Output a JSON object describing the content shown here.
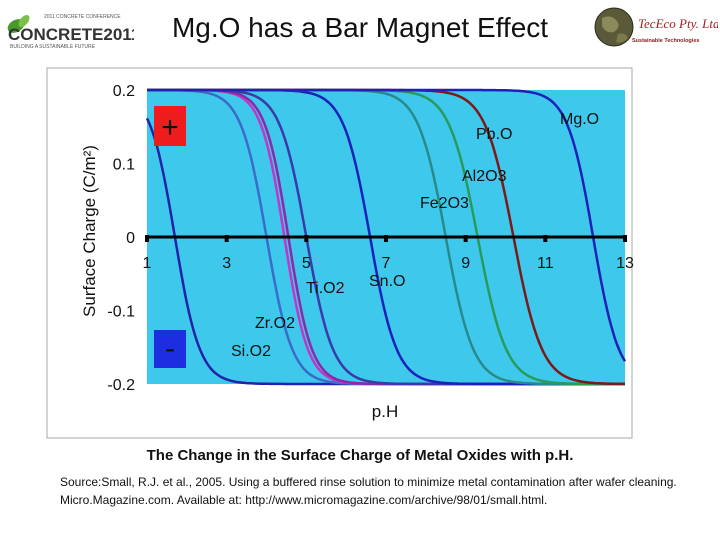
{
  "slide": {
    "title": "Mg.O has a Bar Magnet Effect",
    "caption": "The Change in the Surface Charge of Metal Oxides with p.H.",
    "source": "Source:Small, R.J. et al., 2005. Using a buffered rinse solution to minimize metal contamination after wafer cleaning. Micro.Magazine.com. Available at: http://www.micromagazine.com/archive/98/01/small.html."
  },
  "logos": {
    "left": {
      "big": "CONCRETE2011",
      "top": "2011 CONCRETE CONFERENCE",
      "sub": "BUILDING A SUSTAINABLE FUTURE"
    },
    "right": {
      "name": "TecEco Pty. Ltd.",
      "tagline": "Sustainable Technologies"
    }
  },
  "colors": {
    "plot_background": "#3ec8ec",
    "positive_box": "#ee1c1c",
    "negative_box": "#1c2ee0"
  },
  "chart_data": {
    "type": "line",
    "xlabel": "p.H",
    "ylabel": "Surface Charge (C/m²)",
    "xlim": [
      1,
      13
    ],
    "ylim": [
      -0.2,
      0.2
    ],
    "xticks": [
      "1",
      "3",
      "5",
      "7",
      "9",
      "11",
      "13"
    ],
    "yticks": [
      {
        "value": 0.2,
        "label": "0.2"
      },
      {
        "value": 0.1,
        "label": "0.1"
      },
      {
        "value": 0,
        "label": "0"
      },
      {
        "value": -0.1,
        "label": "-0.1"
      },
      {
        "value": -0.2,
        "label": "-0.2"
      }
    ],
    "grid": false,
    "positive_label": "+",
    "negative_label": "-",
    "series": [
      {
        "name": "SiO2",
        "color": "#2222aa",
        "pzc": 1.7,
        "k": 1.6
      },
      {
        "name": "ZrO2",
        "color": "#3a6cc8",
        "pzc": 4.0,
        "k": 1.55
      },
      {
        "name": "",
        "color": "#c038c8",
        "pzc": 4.45,
        "k": 1.7
      },
      {
        "name": "",
        "color": "#8a2aa8",
        "pzc": 4.55,
        "k": 1.7
      },
      {
        "name": "TiO2",
        "color": "#3a3aa8",
        "pzc": 5.0,
        "k": 1.5
      },
      {
        "name": "SnO2",
        "color": "#1a22bb",
        "pzc": 6.6,
        "k": 1.5
      },
      {
        "name": "Fe2O3",
        "color": "#2a8a8a",
        "pzc": 8.5,
        "k": 1.45
      },
      {
        "name": "Al2O3",
        "color": "#2a9a5a",
        "pzc": 9.3,
        "k": 1.4
      },
      {
        "name": "PbO",
        "color": "#7a1a1a",
        "pzc": 10.2,
        "k": 1.4
      },
      {
        "name": "MgO",
        "color": "#2020b8",
        "pzc": 12.2,
        "k": 1.55
      }
    ],
    "annotations": [
      {
        "text": "Mg.O",
        "target": "MgO"
      },
      {
        "text": "Pb.O",
        "target": "PbO"
      },
      {
        "text": "Al2O3",
        "target": "Al2O3"
      },
      {
        "text": "Fe2O3",
        "target": "Fe2O3"
      },
      {
        "text": "Sn.O",
        "target": "SnO2"
      },
      {
        "text": "Ti.O2",
        "target": "TiO2"
      },
      {
        "text": "Zr.O2",
        "target": "ZrO2"
      },
      {
        "text": "Si.O2",
        "target": "SiO2"
      }
    ]
  }
}
